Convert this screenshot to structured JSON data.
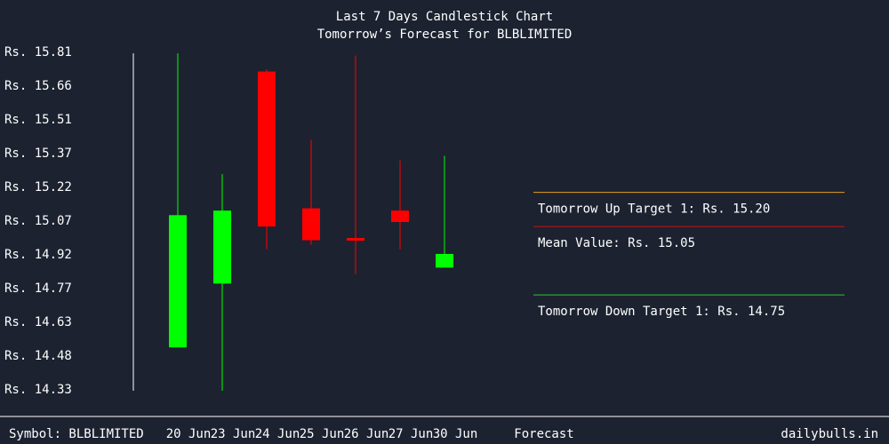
{
  "chart_data": {
    "type": "candlestick",
    "title": "Last 7 Days Candlestick Chart",
    "subtitle": "Tomorrow’s Forecast for BLBLIMITED",
    "currency_prefix": "Rs.",
    "y_ticks": [
      "15.81",
      "15.66",
      "15.51",
      "15.37",
      "15.22",
      "15.07",
      "14.92",
      "14.77",
      "14.63",
      "14.48",
      "14.33"
    ],
    "ylim": [
      14.33,
      15.81
    ],
    "categories": [
      "20 Jun",
      "23 Jun",
      "24 Jun",
      "25 Jun",
      "26 Jun",
      "27 Jun",
      "30 Jun"
    ],
    "candles": [
      {
        "date": "20 Jun",
        "open": 14.52,
        "high": 15.81,
        "low": 14.52,
        "close": 15.1,
        "direction": "up"
      },
      {
        "date": "23 Jun",
        "open": 14.8,
        "high": 15.28,
        "low": 14.33,
        "close": 15.12,
        "direction": "up"
      },
      {
        "date": "24 Jun",
        "open": 15.73,
        "high": 15.74,
        "low": 14.95,
        "close": 15.05,
        "direction": "down"
      },
      {
        "date": "25 Jun",
        "open": 15.13,
        "high": 15.43,
        "low": 14.97,
        "close": 14.99,
        "direction": "down"
      },
      {
        "date": "26 Jun",
        "open": 15.0,
        "high": 15.8,
        "low": 14.84,
        "close": 14.99,
        "direction": "down"
      },
      {
        "date": "27 Jun",
        "open": 15.12,
        "high": 15.34,
        "low": 14.95,
        "close": 15.07,
        "direction": "down"
      },
      {
        "date": "30 Jun",
        "open": 14.87,
        "high": 15.36,
        "low": 14.87,
        "close": 14.93,
        "direction": "up"
      }
    ],
    "forecast_label": "Forecast",
    "targets": [
      {
        "label": "Tomorrow Up Target 1: Rs. 15.20",
        "value": 15.2,
        "color": "#e8a020"
      },
      {
        "label": "Mean Value: Rs. 15.05",
        "value": 15.05,
        "color": "#cc1111"
      },
      {
        "label": "Tomorrow Down Target 1: Rs. 14.75",
        "value": 14.75,
        "color": "#22cc22"
      }
    ],
    "colors": {
      "up": "#00ff00",
      "down": "#ff0000",
      "background": "#1c2230",
      "text": "#ffffff"
    }
  },
  "footer": {
    "symbol": "Symbol: BLBLIMITED",
    "site": "dailybulls.in"
  }
}
